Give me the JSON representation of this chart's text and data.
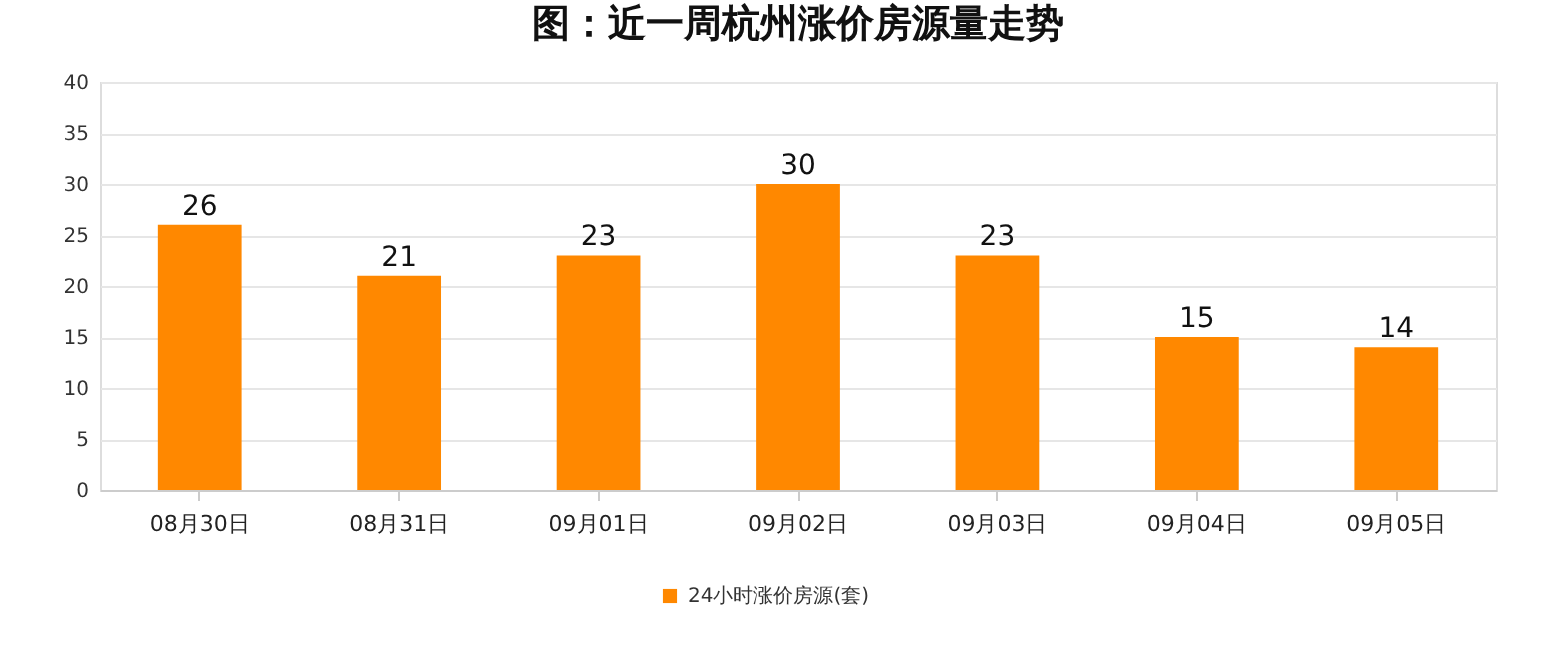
{
  "chart_data": {
    "type": "bar",
    "title": "图：近一周杭州涨价房源量走势",
    "categories": [
      "08月30日",
      "08月31日",
      "09月01日",
      "09月02日",
      "09月03日",
      "09月04日",
      "09月05日"
    ],
    "series": [
      {
        "name": "24小时涨价房源(套)",
        "color": "#ff8800",
        "values": [
          26,
          21,
          23,
          30,
          23,
          15,
          14
        ]
      }
    ],
    "ylim": [
      0,
      40
    ],
    "yticks": [
      0,
      5,
      10,
      15,
      20,
      25,
      30,
      35,
      40
    ],
    "grid": "y",
    "legend": "bottom",
    "data_labels": true
  }
}
